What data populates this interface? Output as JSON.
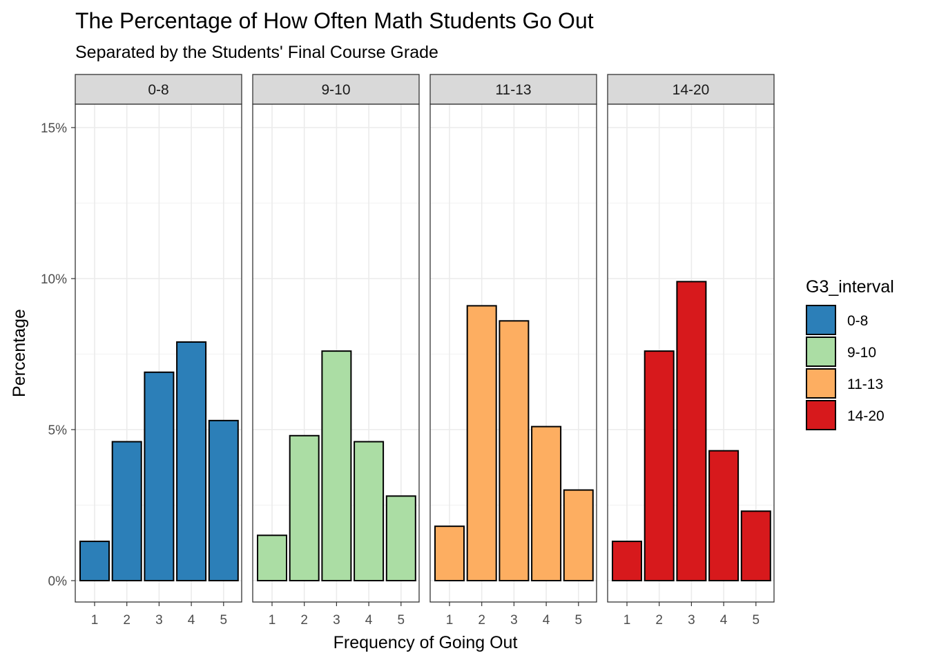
{
  "chart_data": {
    "type": "bar",
    "title": "The Percentage of How Often Math Students Go Out",
    "subtitle": "Separated by the Students' Final Course Grade",
    "xlabel": "Frequency of Going Out",
    "ylabel": "Percentage",
    "categories": [
      "1",
      "2",
      "3",
      "4",
      "5"
    ],
    "y_ticks": [
      "0%",
      "5%",
      "10%",
      "15%"
    ],
    "ylim": [
      0,
      16
    ],
    "y_unit": "percent",
    "grid": true,
    "legend": {
      "title": "G3_interval",
      "position": "right"
    },
    "facets": [
      "0-8",
      "9-10",
      "11-13",
      "14-20"
    ],
    "series": [
      {
        "name": "0-8",
        "color": "#2C7FB8",
        "values": [
          1.3,
          4.6,
          6.9,
          7.9,
          5.3
        ]
      },
      {
        "name": "9-10",
        "color": "#ABDDA4",
        "values": [
          1.5,
          4.8,
          7.6,
          4.6,
          2.8
        ]
      },
      {
        "name": "11-13",
        "color": "#FDAE61",
        "values": [
          1.8,
          9.1,
          8.6,
          5.1,
          3.0
        ]
      },
      {
        "name": "14-20",
        "color": "#D7191C",
        "values": [
          1.3,
          7.6,
          9.9,
          4.3,
          2.3
        ]
      }
    ]
  }
}
